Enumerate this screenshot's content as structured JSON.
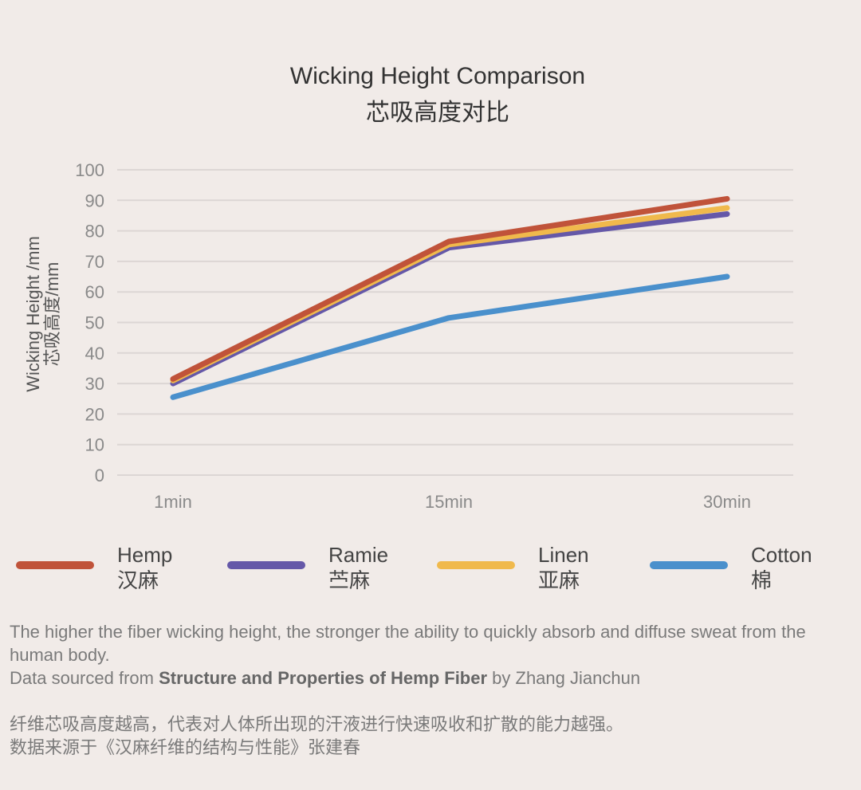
{
  "title_en": "Wicking Height Comparison",
  "title_zh": "芯吸高度对比",
  "chart_data": {
    "type": "line",
    "title": "Wicking Height Comparison 芯吸高度对比",
    "ylabel_en": "Wicking Height /mm",
    "ylabel_zh": "芯吸高度/mm",
    "categories": [
      "1min",
      "15min",
      "30min"
    ],
    "ylim": [
      0,
      100
    ],
    "yticks": [
      0,
      10,
      20,
      30,
      40,
      50,
      60,
      70,
      80,
      90,
      100
    ],
    "grid": true,
    "legend_position": "bottom",
    "series": [
      {
        "name": "Hemp",
        "name_zh": "汉麻",
        "color": "#c0533a",
        "values": [
          31.5,
          76.5,
          90.5
        ]
      },
      {
        "name": "Ramie",
        "name_zh": "苎麻",
        "color": "#6558a8",
        "values": [
          30,
          74.5,
          85.5
        ]
      },
      {
        "name": "Linen",
        "name_zh": "亚麻",
        "color": "#f0b94c",
        "values": [
          31,
          75.5,
          87.5
        ]
      },
      {
        "name": "Cotton",
        "name_zh": "棉",
        "color": "#4a90cc",
        "values": [
          25.5,
          51.5,
          65
        ]
      }
    ]
  },
  "notes": {
    "line1": "The higher the fiber wicking height, the stronger the ability to quickly absorb and diffuse sweat from the human body.",
    "line2_pre": "Data sourced from ",
    "line2_bold": "Structure and Properties of Hemp Fiber",
    "line2_post": " by Zhang Jianchun",
    "line3": "纤维芯吸高度越高，代表对人体所出现的汗液进行快速吸收和扩散的能力越强。",
    "line4": "数据来源于《汉麻纤维的结构与性能》张建春"
  }
}
